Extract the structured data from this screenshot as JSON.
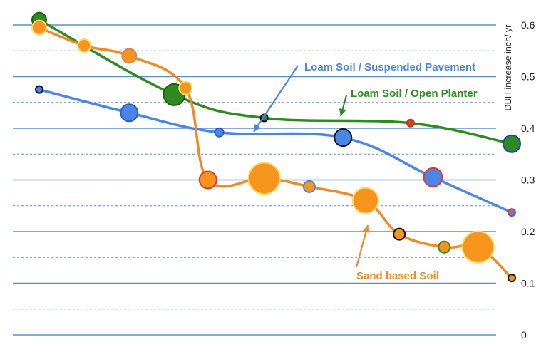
{
  "chart_data": {
    "type": "line",
    "title": "",
    "xlabel": "",
    "ylabel": "DBH increase inch/ yr",
    "ylim": [
      0,
      0.65
    ],
    "yticks": [
      "0",
      "0.1",
      "0.2",
      "0.3",
      "0.4",
      "0.5",
      "0.6"
    ],
    "grid": "horizontal solid major lines, dashed minor lines",
    "x_axis_labeled": false,
    "series": [
      {
        "name": "Loam Soil / Open Planter",
        "color": "#2e8b1f",
        "points": [
          {
            "x": 1,
            "y": 0.61,
            "size": 10,
            "fill": "#2e8b1f",
            "outline": "#1d5e12"
          },
          {
            "x": 7,
            "y": 0.465,
            "size": 15,
            "fill": "#2e8b1f",
            "outline": "#1d5e12"
          },
          {
            "x": 11,
            "y": 0.42,
            "size": 5,
            "fill": "#2e8b1f",
            "outline": "#111111"
          },
          {
            "x": 17.5,
            "y": 0.41,
            "size": 5,
            "fill": "#e0392f",
            "outline": "#b83d19"
          },
          {
            "x": 22,
            "y": 0.37,
            "size": 12,
            "fill": "#2e8b1f",
            "outline": "#1f3fbf"
          }
        ]
      },
      {
        "name": "Loam Soil / Suspended Pavement",
        "color": "#4a86e8",
        "points": [
          {
            "x": 1,
            "y": 0.475,
            "size": 5,
            "fill": "#4a86e8",
            "outline": "#111111"
          },
          {
            "x": 5,
            "y": 0.43,
            "size": 12,
            "fill": "#4a86e8",
            "outline": "#2e5fb8"
          },
          {
            "x": 9,
            "y": 0.392,
            "size": 6,
            "fill": "#4a86e8",
            "outline": "#2e5fb8"
          },
          {
            "x": 14.5,
            "y": 0.382,
            "size": 12,
            "fill": "#4a86e8",
            "outline": "#111111"
          },
          {
            "x": 18.5,
            "y": 0.305,
            "size": 13,
            "fill": "#4a86e8",
            "outline": "#e0392f"
          },
          {
            "x": 22,
            "y": 0.237,
            "size": 5,
            "fill": "#4a86e8",
            "outline": "#e0392f"
          }
        ]
      },
      {
        "name": "Sand based Soil",
        "color": "#f08a24",
        "points": [
          {
            "x": 1,
            "y": 0.595,
            "size": 10,
            "fill": "#f7941d",
            "outline": "#ffd966"
          },
          {
            "x": 3,
            "y": 0.56,
            "size": 9,
            "fill": "#f7941d",
            "outline": "#ffd966"
          },
          {
            "x": 5,
            "y": 0.54,
            "size": 10,
            "fill": "#f7941d",
            "outline": "#c98a5c"
          },
          {
            "x": 7.5,
            "y": 0.478,
            "size": 9,
            "fill": "#f7941d",
            "outline": "#ffd966"
          },
          {
            "x": 8.5,
            "y": 0.3,
            "size": 12,
            "fill": "#f7941d",
            "outline": "#e0392f"
          },
          {
            "x": 11,
            "y": 0.303,
            "size": 22,
            "fill": "#f7941d",
            "outline": "#ffd966"
          },
          {
            "x": 13,
            "y": 0.287,
            "size": 8,
            "fill": "#f7941d",
            "outline": "#4a86e8"
          },
          {
            "x": 15.5,
            "y": 0.26,
            "size": 18,
            "fill": "#f7941d",
            "outline": "#ffd966"
          },
          {
            "x": 17,
            "y": 0.195,
            "size": 8,
            "fill": "#f7941d",
            "outline": "#111111"
          },
          {
            "x": 19,
            "y": 0.17,
            "size": 8,
            "fill": "#f7941d",
            "outline": "#2e8b1f"
          },
          {
            "x": 20.5,
            "y": 0.17,
            "size": 22,
            "fill": "#f7941d",
            "outline": "#ffd966"
          },
          {
            "x": 22,
            "y": 0.11,
            "size": 5,
            "fill": "#f7941d",
            "outline": "#111111"
          }
        ]
      }
    ],
    "annotations": [
      {
        "text": "Loam Soil / Suspended Pavement",
        "color": "#4a86e8",
        "series": "Loam Soil / Suspended Pavement"
      },
      {
        "text": "Loam Soil / Open Planter",
        "color": "#2e8b1f",
        "series": "Loam Soil / Open Planter"
      },
      {
        "text": "Sand based Soil",
        "color": "#f08a24",
        "series": "Sand based Soil"
      }
    ]
  }
}
